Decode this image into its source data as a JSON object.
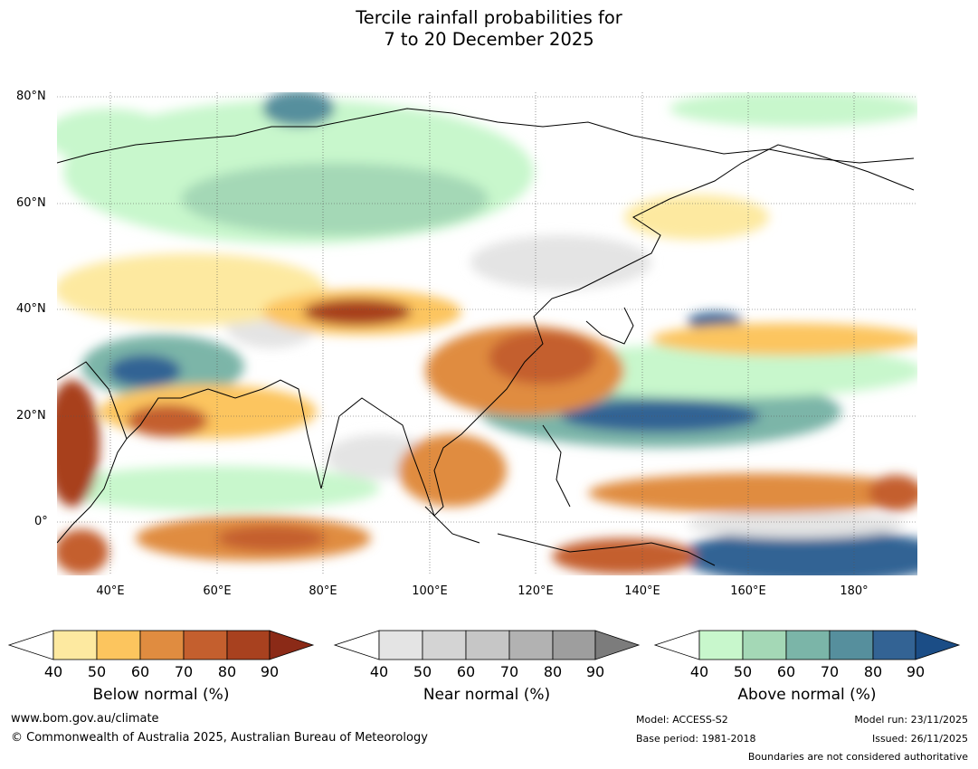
{
  "title": {
    "line1": "Tercile rainfall probabilities for",
    "line2": "7 to 20 December 2025"
  },
  "map": {
    "lat_labels": [
      "80°N",
      "60°N",
      "40°N",
      "20°N",
      "0°"
    ],
    "lon_labels": [
      "40°E",
      "60°E",
      "80°E",
      "100°E",
      "120°E",
      "140°E",
      "160°E",
      "180°"
    ],
    "lat_range": [
      -10,
      80
    ],
    "lon_range": [
      30,
      192
    ]
  },
  "legend": {
    "ticks": [
      "40",
      "50",
      "60",
      "70",
      "80",
      "90"
    ],
    "below": {
      "label": "Below normal (%)",
      "colors": [
        "#ffffff",
        "#fde9a0",
        "#fcc55e",
        "#e08c40",
        "#c45f2e",
        "#a8411f",
        "#8b2a17"
      ]
    },
    "near": {
      "label": "Near normal (%)",
      "colors": [
        "#ffffff",
        "#e4e4e4",
        "#d4d4d4",
        "#c6c6c6",
        "#b2b2b2",
        "#9e9e9e",
        "#7c7c7c"
      ]
    },
    "above": {
      "label": "Above normal (%)",
      "colors": [
        "#ffffff",
        "#c8f7cc",
        "#a4d8b6",
        "#7bb5a8",
        "#568f9d",
        "#336394",
        "#1b4d86"
      ]
    }
  },
  "footer": {
    "website": "www.bom.gov.au/climate",
    "copyright": "© Commonwealth of Australia 2025, Australian Bureau of Meteorology",
    "model": "Model: ACCESS-S2",
    "base_period": "Base period: 1981-2018",
    "model_run": "Model run: 23/11/2025",
    "issued": "Issued: 26/11/2025",
    "boundaries": "Boundaries are not considered authoritative"
  }
}
